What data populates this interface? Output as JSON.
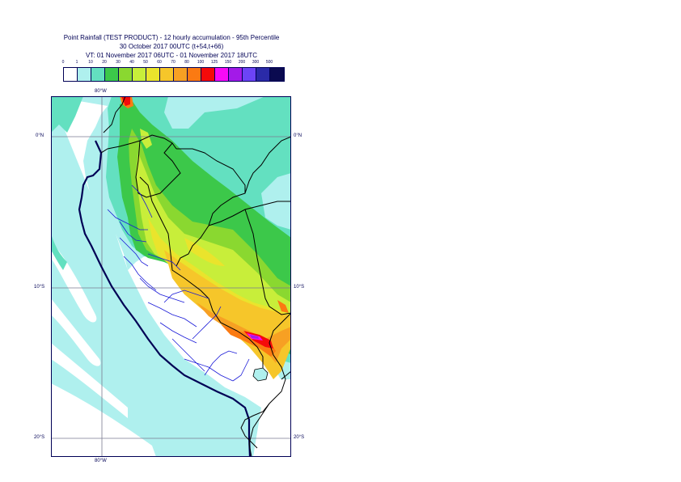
{
  "title": {
    "line1": "Point Rainfall (TEST PRODUCT) - 12 hourly accumulation - 95th Percentile",
    "line2": "30 October 2017 00UTC (t+54,t+66)",
    "line3": "VT: 01 November 2017 06UTC - 01 November 2017 18UTC"
  },
  "legend": {
    "thresholds": [
      "0",
      "1",
      "10",
      "20",
      "30",
      "40",
      "50",
      "60",
      "70",
      "80",
      "100",
      "125",
      "150",
      "200",
      "300",
      "500"
    ],
    "colors": [
      "#ffffff",
      "#aff0ee",
      "#63e0c0",
      "#3cc84a",
      "#8ad830",
      "#c8ee3a",
      "#eae42c",
      "#f6c62a",
      "#f7a023",
      "#fb7a12",
      "#f50a0a",
      "#f80af6",
      "#a31ae8",
      "#6c44f6",
      "#2a2aa8",
      "#0a0a50"
    ]
  },
  "map": {
    "lon_labels": {
      "top": "80°W",
      "bottom": "80°W"
    },
    "lat_labels": [
      {
        "left": "0°N",
        "right": "0°N"
      },
      {
        "left": "10°S",
        "right": "10°S"
      },
      {
        "left": "20°S",
        "right": "20°S"
      }
    ],
    "colors": {
      "ocean": "#aff0ee",
      "land": "#ffffff",
      "border": "#000000",
      "admin": "#1a1ad8",
      "grid": "#7a7a90"
    }
  }
}
